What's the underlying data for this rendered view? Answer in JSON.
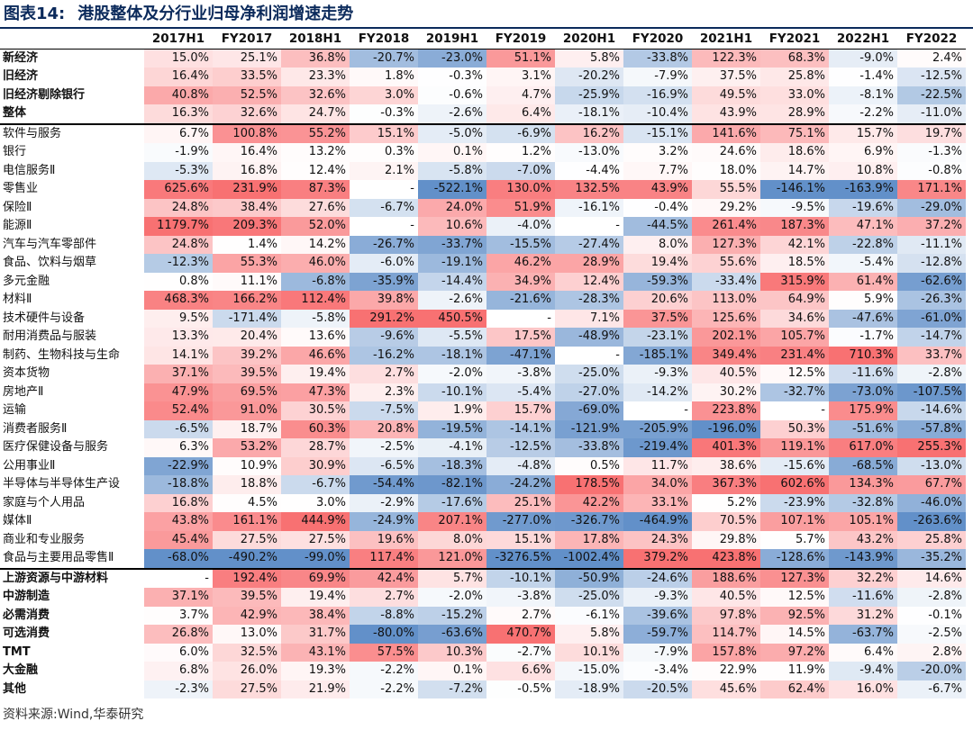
{
  "title": {
    "prefix": "图表14:",
    "text": "港股整体及分行业归母净利润增速走势"
  },
  "source": "资料来源:Wind,华泰研究",
  "colors": {
    "positive": "#f8696b",
    "negative": "#5a8ac6",
    "neutral": "#ffffff",
    "title": "#0b2a5b"
  },
  "chart_data": {
    "type": "table",
    "columns": [
      "2017H1",
      "FY2017",
      "2018H1",
      "FY2018",
      "2019H1",
      "FY2019",
      "2020H1",
      "FY2020",
      "2021H1",
      "FY2021",
      "2022H1",
      "FY2022"
    ],
    "rows": [
      {
        "label": "新经济",
        "bold": true,
        "values": [
          "15.0%",
          "25.1%",
          "36.8%",
          "-20.7%",
          "-23.0%",
          "51.1%",
          "5.8%",
          "-33.8%",
          "122.3%",
          "68.3%",
          "-9.0%",
          "2.4%"
        ]
      },
      {
        "label": "旧经济",
        "bold": true,
        "values": [
          "16.4%",
          "33.5%",
          "23.3%",
          "1.8%",
          "-0.3%",
          "3.1%",
          "-20.2%",
          "-7.9%",
          "37.5%",
          "25.8%",
          "-1.4%",
          "-12.5%"
        ]
      },
      {
        "label": "旧经济剔除银行",
        "bold": true,
        "values": [
          "40.8%",
          "52.5%",
          "32.6%",
          "3.0%",
          "-0.6%",
          "4.7%",
          "-25.9%",
          "-16.9%",
          "49.5%",
          "33.0%",
          "-8.1%",
          "-22.5%"
        ]
      },
      {
        "label": "整体",
        "bold": true,
        "values": [
          "16.3%",
          "32.6%",
          "24.7%",
          "-0.3%",
          "-2.6%",
          "6.4%",
          "-18.1%",
          "-10.4%",
          "43.9%",
          "28.9%",
          "-2.2%",
          "-11.0%"
        ]
      },
      {
        "label": "软件与服务",
        "group_start": true,
        "values": [
          "6.7%",
          "100.8%",
          "55.2%",
          "15.1%",
          "-5.0%",
          "-6.9%",
          "16.2%",
          "-15.1%",
          "141.6%",
          "75.1%",
          "15.7%",
          "19.7%"
        ]
      },
      {
        "label": "银行",
        "values": [
          "-1.9%",
          "16.4%",
          "13.2%",
          "0.3%",
          "0.1%",
          "1.2%",
          "-13.0%",
          "3.2%",
          "24.6%",
          "18.6%",
          "6.9%",
          "-1.3%"
        ]
      },
      {
        "label": "电信服务Ⅱ",
        "values": [
          "-5.3%",
          "16.8%",
          "12.4%",
          "2.1%",
          "-5.8%",
          "-7.0%",
          "-4.4%",
          "7.7%",
          "18.0%",
          "14.7%",
          "10.8%",
          "-0.8%"
        ]
      },
      {
        "label": "零售业",
        "values": [
          "625.6%",
          "231.9%",
          "87.3%",
          "-",
          "-522.1%",
          "130.0%",
          "132.5%",
          "43.9%",
          "55.5%",
          "-146.1%",
          "-163.9%",
          "171.1%"
        ]
      },
      {
        "label": "保险Ⅱ",
        "values": [
          "24.8%",
          "38.4%",
          "27.6%",
          "-6.7%",
          "24.0%",
          "51.9%",
          "-16.1%",
          "-0.4%",
          "29.2%",
          "-9.5%",
          "-19.6%",
          "-29.0%"
        ]
      },
      {
        "label": "能源Ⅱ",
        "values": [
          "1179.7%",
          "209.3%",
          "52.0%",
          "-",
          "10.6%",
          "-4.0%",
          "-",
          "-44.5%",
          "261.4%",
          "187.3%",
          "47.1%",
          "37.2%"
        ]
      },
      {
        "label": "汽车与汽车零部件",
        "values": [
          "24.8%",
          "1.4%",
          "14.2%",
          "-26.7%",
          "-33.7%",
          "-15.5%",
          "-27.4%",
          "8.0%",
          "127.3%",
          "42.1%",
          "-22.8%",
          "-11.1%"
        ]
      },
      {
        "label": "食品、饮料与烟草",
        "values": [
          "-12.3%",
          "55.3%",
          "46.0%",
          "-6.0%",
          "-19.1%",
          "46.2%",
          "28.9%",
          "19.4%",
          "55.6%",
          "18.5%",
          "-5.4%",
          "-12.8%"
        ]
      },
      {
        "label": "多元金融",
        "values": [
          "0.8%",
          "11.1%",
          "-6.8%",
          "-35.9%",
          "-14.4%",
          "34.9%",
          "12.4%",
          "-59.3%",
          "-33.4%",
          "315.9%",
          "61.4%",
          "-62.6%"
        ]
      },
      {
        "label": "材料Ⅱ",
        "values": [
          "468.3%",
          "166.2%",
          "112.4%",
          "39.8%",
          "-2.6%",
          "-21.6%",
          "-28.3%",
          "20.6%",
          "113.0%",
          "64.9%",
          "5.9%",
          "-26.3%"
        ]
      },
      {
        "label": "技术硬件与设备",
        "values": [
          "9.5%",
          "-171.4%",
          "-5.8%",
          "291.2%",
          "450.5%",
          "-",
          "7.1%",
          "37.5%",
          "125.6%",
          "34.6%",
          "-47.6%",
          "-61.0%"
        ]
      },
      {
        "label": "耐用消费品与服装",
        "values": [
          "13.3%",
          "20.4%",
          "13.6%",
          "-9.6%",
          "-5.5%",
          "17.5%",
          "-48.9%",
          "-23.1%",
          "202.1%",
          "105.7%",
          "-1.7%",
          "-14.7%"
        ]
      },
      {
        "label": "制药、生物科技与生命",
        "values": [
          "14.1%",
          "39.2%",
          "46.6%",
          "-16.2%",
          "-18.1%",
          "-47.1%",
          "-",
          "-185.1%",
          "349.4%",
          "231.4%",
          "710.3%",
          "33.7%"
        ]
      },
      {
        "label": "资本货物",
        "values": [
          "37.1%",
          "39.5%",
          "19.4%",
          "2.7%",
          "-2.0%",
          "-3.8%",
          "-25.0%",
          "-9.3%",
          "40.5%",
          "12.5%",
          "-11.6%",
          "-2.8%"
        ]
      },
      {
        "label": "房地产Ⅱ",
        "values": [
          "47.9%",
          "69.5%",
          "47.3%",
          "2.3%",
          "-10.1%",
          "-5.4%",
          "-27.0%",
          "-14.2%",
          "30.2%",
          "-32.7%",
          "-73.0%",
          "-107.5%"
        ]
      },
      {
        "label": "运输",
        "values": [
          "52.4%",
          "91.0%",
          "30.5%",
          "-7.5%",
          "1.9%",
          "15.7%",
          "-69.0%",
          "-",
          "223.8%",
          "-",
          "175.9%",
          "-14.6%"
        ]
      },
      {
        "label": "消费者服务Ⅱ",
        "values": [
          "-6.5%",
          "18.7%",
          "60.3%",
          "20.8%",
          "-19.5%",
          "-14.1%",
          "-121.9%",
          "-205.9%",
          "-196.0%",
          "50.3%",
          "-51.6%",
          "-57.8%"
        ]
      },
      {
        "label": "医疗保健设备与服务",
        "values": [
          "6.3%",
          "53.2%",
          "28.7%",
          "-2.5%",
          "-4.1%",
          "-12.5%",
          "-33.8%",
          "-219.4%",
          "401.3%",
          "119.1%",
          "617.0%",
          "255.3%"
        ]
      },
      {
        "label": "公用事业Ⅱ",
        "values": [
          "-22.9%",
          "10.9%",
          "30.9%",
          "-6.5%",
          "-18.3%",
          "-4.8%",
          "0.5%",
          "11.7%",
          "38.6%",
          "-15.6%",
          "-68.5%",
          "-13.0%"
        ]
      },
      {
        "label": "半导体与半导体生产设",
        "values": [
          "-18.8%",
          "18.8%",
          "-6.7%",
          "-54.4%",
          "-82.1%",
          "-24.2%",
          "178.5%",
          "34.0%",
          "367.3%",
          "602.6%",
          "134.3%",
          "67.7%"
        ]
      },
      {
        "label": "家庭与个人用品",
        "values": [
          "16.8%",
          "4.5%",
          "3.0%",
          "-2.9%",
          "-17.6%",
          "25.1%",
          "42.2%",
          "33.1%",
          "5.2%",
          "-23.9%",
          "-32.8%",
          "-46.0%"
        ]
      },
      {
        "label": "媒体Ⅱ",
        "values": [
          "43.8%",
          "161.1%",
          "444.9%",
          "-24.9%",
          "207.1%",
          "-277.0%",
          "-326.7%",
          "-464.9%",
          "70.5%",
          "107.1%",
          "105.1%",
          "-263.6%"
        ]
      },
      {
        "label": "商业和专业服务",
        "values": [
          "45.4%",
          "27.5%",
          "27.5%",
          "19.6%",
          "8.0%",
          "15.1%",
          "17.8%",
          "24.3%",
          "29.8%",
          "5.7%",
          "43.2%",
          "25.8%"
        ]
      },
      {
        "label": "食品与主要用品零售Ⅱ",
        "values": [
          "-68.0%",
          "-490.2%",
          "-99.0%",
          "117.4%",
          "121.0%",
          "-3276.5%",
          "-1002.4%",
          "379.2%",
          "423.8%",
          "-128.6%",
          "-143.9%",
          "-35.2%"
        ]
      },
      {
        "label": "上游资源与中游材料",
        "bold": true,
        "group_start": true,
        "values": [
          "-",
          "192.4%",
          "69.9%",
          "42.4%",
          "5.7%",
          "-10.1%",
          "-50.9%",
          "-24.6%",
          "188.6%",
          "127.3%",
          "32.2%",
          "14.6%"
        ]
      },
      {
        "label": "中游制造",
        "bold": true,
        "values": [
          "37.1%",
          "39.5%",
          "19.4%",
          "2.7%",
          "-2.0%",
          "-3.8%",
          "-25.0%",
          "-9.3%",
          "40.5%",
          "12.5%",
          "-11.6%",
          "-2.8%"
        ]
      },
      {
        "label": "必需消费",
        "bold": true,
        "values": [
          "3.7%",
          "42.9%",
          "38.4%",
          "-8.8%",
          "-15.2%",
          "2.7%",
          "-6.1%",
          "-39.6%",
          "97.8%",
          "92.5%",
          "31.2%",
          "-0.1%"
        ]
      },
      {
        "label": "可选消费",
        "bold": true,
        "values": [
          "26.8%",
          "13.0%",
          "31.7%",
          "-80.0%",
          "-63.6%",
          "470.7%",
          "5.8%",
          "-59.7%",
          "114.7%",
          "14.5%",
          "-63.7%",
          "-2.5%"
        ]
      },
      {
        "label": "TMT",
        "bold": true,
        "values": [
          "6.0%",
          "32.5%",
          "43.1%",
          "57.5%",
          "10.3%",
          "-2.7%",
          "10.1%",
          "-7.9%",
          "157.8%",
          "97.2%",
          "6.4%",
          "2.8%"
        ]
      },
      {
        "label": "大金融",
        "bold": true,
        "values": [
          "6.8%",
          "26.0%",
          "19.3%",
          "-2.2%",
          "0.1%",
          "6.6%",
          "-15.0%",
          "-3.4%",
          "22.9%",
          "11.9%",
          "-9.4%",
          "-20.0%"
        ]
      },
      {
        "label": "其他",
        "bold": true,
        "values": [
          "-2.3%",
          "27.5%",
          "21.9%",
          "-2.2%",
          "-7.2%",
          "-0.5%",
          "-18.9%",
          "-20.5%",
          "45.6%",
          "62.4%",
          "16.0%",
          "-6.7%"
        ]
      }
    ]
  }
}
